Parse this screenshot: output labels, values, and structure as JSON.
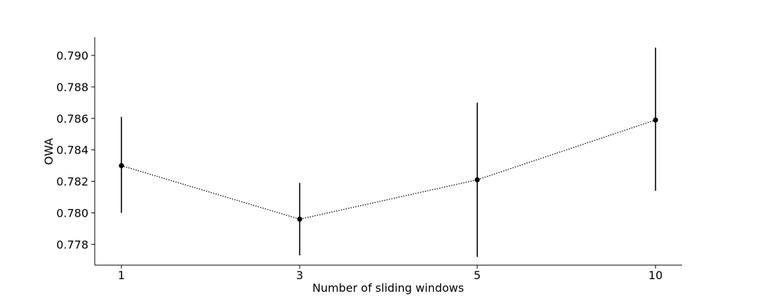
{
  "chart_data": {
    "type": "line",
    "title": "",
    "xlabel": "Number of sliding windows",
    "ylabel": "OWA",
    "categories": [
      "1",
      "3",
      "5",
      "10"
    ],
    "series": [
      {
        "values": [
          0.783,
          0.7796,
          0.7821,
          0.7859
        ],
        "error_low": [
          0.78,
          0.7773,
          0.7772,
          0.7814
        ],
        "error_high": [
          0.7861,
          0.7819,
          0.787,
          0.7905
        ],
        "line_style": "dotted",
        "marker": "circle",
        "color": "#000000"
      }
    ],
    "yticks": [
      0.778,
      0.78,
      0.782,
      0.784,
      0.786,
      0.788,
      0.79
    ],
    "ytick_labels": [
      "0.778",
      "0.780",
      "0.782",
      "0.784",
      "0.786",
      "0.788",
      "0.790"
    ],
    "ylim": [
      0.77668,
      0.79116
    ],
    "grid": false,
    "legend": "none",
    "spines": "left-bottom"
  }
}
